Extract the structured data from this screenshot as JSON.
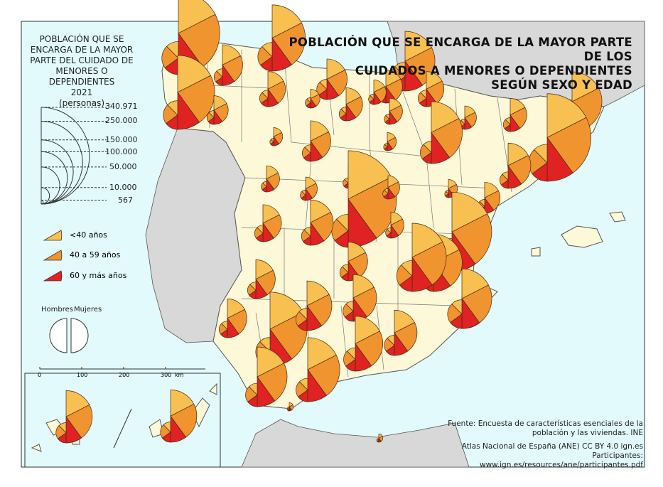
{
  "title": [
    "POBLACIÓN QUE SE ENCARGA DE LA MAYOR PARTE DE LOS",
    "CUIDADOS A MENORES O DEPENDIENTES",
    "SEGÚN SEXO Y EDAD"
  ],
  "legend": {
    "title": [
      "POBLACIÓN QUE SE",
      "ENCARGA DE LA MAYOR",
      "PARTE DEL CUIDADO DE",
      "MENORES O DEPENDIENTES",
      "2021",
      "(personas)"
    ],
    "size_values": [
      "340.971",
      "250.000",
      "150.000",
      "100.000",
      "50.000",
      "10.000",
      "567"
    ],
    "age_groups": [
      {
        "label": "<40 años",
        "color": "#f8c050"
      },
      {
        "label": "40 a 59 años",
        "color": "#f09430"
      },
      {
        "label": "60 y más años",
        "color": "#e02222"
      }
    ],
    "sex_labels": {
      "men": "Hombres",
      "women": "Mujeres"
    }
  },
  "scale_bar": {
    "ticks": [
      "0",
      "100",
      "200",
      "300"
    ],
    "unit": "km"
  },
  "credits": {
    "source": [
      "Fuente: Encuesta de características esenciales de la",
      "población y las viviendas. INE"
    ],
    "atlas": "Atlas Nacional de España (ANE) CC BY 4.0 ign.es",
    "participants": "Participantes: www.ign.es/resources/ane/participantes.pdf"
  },
  "colors": {
    "sea": "#e2fafc",
    "spain": "#fdf8d8",
    "foreign": "#d8d8d8",
    "border": "#555555"
  },
  "symbols": [
    {
      "men": 40000,
      "women": 250000
    },
    {
      "men": 10000,
      "women": 60000
    },
    {
      "men": 30000,
      "women": 200000
    },
    {
      "men": 7000,
      "women": 30000
    },
    {
      "men": 30000,
      "women": 160000
    },
    {
      "men": 15000,
      "women": 60000
    },
    {
      "men": 30000,
      "women": 130000
    },
    {
      "men": 10000,
      "women": 40000
    },
    {
      "men": 4000,
      "women": 22000
    },
    {
      "men": 10000,
      "women": 45000
    },
    {
      "men": 10000,
      "women": 45000
    },
    {
      "men": 4000,
      "women": 13000
    },
    {
      "men": 7000,
      "women": 40000
    },
    {
      "men": 4000,
      "women": 25000
    },
    {
      "men": 4000,
      "women": 20000
    },
    {
      "men": 7000,
      "women": 40000
    },
    {
      "men": 30000,
      "women": 130000
    },
    {
      "men": 50000,
      "women": 280000
    },
    {
      "men": 2000,
      "women": 12000
    },
    {
      "men": 10000,
      "women": 60000
    },
    {
      "men": 2000,
      "women": 12000
    },
    {
      "men": 18000,
      "women": 140000
    },
    {
      "men": 10000,
      "women": 75000
    },
    {
      "men": 4000,
      "women": 25000
    },
    {
      "men": 4000,
      "women": 20000
    },
    {
      "men": 4000,
      "women": 20000
    },
    {
      "men": 40000,
      "women": 340971
    },
    {
      "men": 4000,
      "women": 20000
    },
    {
      "men": 2000,
      "women": 12000
    },
    {
      "men": 7000,
      "women": 35000
    },
    {
      "men": 10000,
      "women": 50000
    },
    {
      "men": 12000,
      "women": 75000
    },
    {
      "men": 4000,
      "women": 25000
    },
    {
      "men": 40000,
      "women": 230000
    },
    {
      "men": 15000,
      "women": 120000
    },
    {
      "men": 15000,
      "women": 100000
    },
    {
      "men": 10000,
      "women": 55000
    },
    {
      "men": 10000,
      "women": 55000
    },
    {
      "men": 35000,
      "women": 170000
    },
    {
      "men": 30000,
      "women": 130000
    },
    {
      "men": 10000,
      "women": 55000
    },
    {
      "men": 30000,
      "women": 200000
    },
    {
      "men": 18000,
      "women": 90000
    },
    {
      "men": 15000,
      "women": 80000
    },
    {
      "men": 20000,
      "women": 110000
    },
    {
      "men": 15000,
      "women": 75000
    },
    {
      "men": 20000,
      "women": 130000
    },
    {
      "men": 20000,
      "women": 150000
    },
    {
      "men": 567,
      "women": 2500
    },
    {
      "men": 567,
      "women": 2500
    },
    {
      "men": 15000,
      "women": 100000
    },
    {
      "men": 15000,
      "women": 100000
    }
  ],
  "age_split": {
    "men": [
      0.25,
      0.45,
      0.3
    ],
    "women": [
      0.35,
      0.45,
      0.2
    ]
  }
}
